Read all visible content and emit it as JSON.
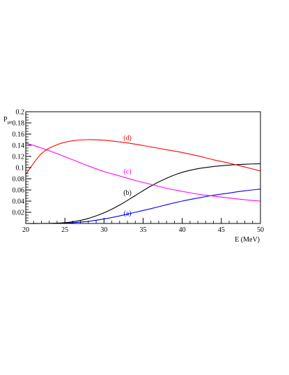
{
  "chart_data": {
    "type": "line",
    "title": "",
    "xlabel": "E (MeV)",
    "ylabel_main": "P",
    "ylabel_sub": "μe",
    "xlim": [
      20,
      50
    ],
    "ylim": [
      0,
      0.2
    ],
    "x_ticks": [
      "20",
      "25",
      "30",
      "35",
      "40",
      "45",
      "50"
    ],
    "y_ticks": [
      "0.02",
      "0.04",
      "0.06",
      "0.08",
      "0.1",
      "0.12",
      "0.14",
      "0.16",
      "0.18",
      "0.2"
    ],
    "grid": false,
    "legend": "none",
    "x": [
      20,
      22,
      24,
      26,
      28,
      30,
      32,
      34,
      36,
      38,
      40,
      42,
      44,
      46,
      48,
      50
    ],
    "series": [
      {
        "name": "(a)",
        "color": "#0000ff",
        "label_position": [
          33,
          0.018
        ],
        "values": [
          0.0,
          0.0,
          0.0003,
          0.0013,
          0.0038,
          0.008,
          0.0135,
          0.02,
          0.0265,
          0.0335,
          0.04,
          0.0455,
          0.0505,
          0.0545,
          0.0585,
          0.0615
        ]
      },
      {
        "name": "(b)",
        "color": "#000000",
        "label_position": [
          33,
          0.055
        ],
        "values": [
          0.0,
          0.0,
          0.0005,
          0.003,
          0.009,
          0.019,
          0.033,
          0.05,
          0.067,
          0.081,
          0.0915,
          0.098,
          0.102,
          0.1045,
          0.106,
          0.107
        ]
      },
      {
        "name": "(c)",
        "color": "#ff00ff",
        "label_position": [
          33,
          0.093
        ],
        "values": [
          0.144,
          0.135,
          0.125,
          0.114,
          0.103,
          0.093,
          0.085,
          0.077,
          0.07,
          0.063,
          0.0575,
          0.0525,
          0.049,
          0.0455,
          0.0425,
          0.04
        ]
      },
      {
        "name": "(d)",
        "color": "#ff0000",
        "label_position": [
          33,
          0.153
        ],
        "values": [
          0.088,
          0.125,
          0.141,
          0.148,
          0.15,
          0.149,
          0.146,
          0.142,
          0.137,
          0.132,
          0.127,
          0.121,
          0.114,
          0.108,
          0.101,
          0.094
        ]
      }
    ]
  }
}
